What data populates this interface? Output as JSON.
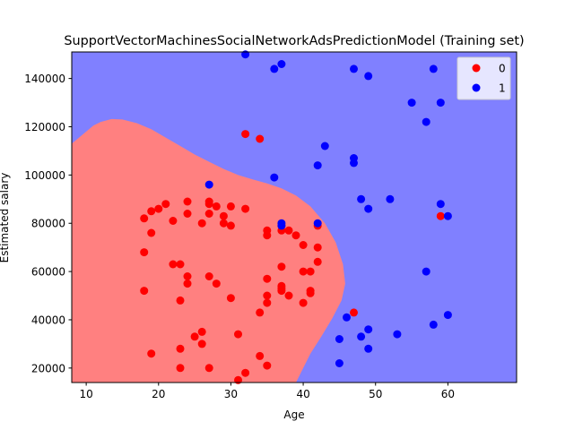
{
  "chart_data": {
    "type": "scatter",
    "title": "SupportVectorMachinesSocialNetworkAdsPredictionModel (Training set)",
    "xlabel": "Age",
    "ylabel": "Estimated salary",
    "xlim": [
      8,
      69.5
    ],
    "ylim": [
      14000,
      151000
    ],
    "xticks": [
      10,
      20,
      30,
      40,
      50,
      60
    ],
    "yticks": [
      20000,
      40000,
      60000,
      80000,
      100000,
      120000,
      140000
    ],
    "ytick_labels": [
      "20000",
      "40000",
      "60000",
      "80000",
      "100000",
      "120000",
      "140000"
    ],
    "grid": false,
    "legend_position": "top-right",
    "region_colors": {
      "0": "#ff8080",
      "1": "#8080ff"
    },
    "decision_boundary": {
      "class_0_region_outline": [
        [
          8,
          113000
        ],
        [
          9,
          115500
        ],
        [
          10,
          118000
        ],
        [
          11,
          120500
        ],
        [
          12,
          122000
        ],
        [
          13.5,
          123200
        ],
        [
          15,
          123000
        ],
        [
          17,
          121500
        ],
        [
          19,
          119000
        ],
        [
          21,
          115500
        ],
        [
          23,
          112000
        ],
        [
          25,
          108500
        ],
        [
          27,
          105500
        ],
        [
          29,
          102500
        ],
        [
          31,
          100000
        ],
        [
          33,
          98200
        ],
        [
          35,
          96500
        ],
        [
          37,
          94500
        ],
        [
          39,
          91500
        ],
        [
          41,
          87000
        ],
        [
          43,
          80000
        ],
        [
          44.5,
          72000
        ],
        [
          45.5,
          63000
        ],
        [
          45.8,
          55000
        ],
        [
          45.3,
          48000
        ],
        [
          44,
          40500
        ],
        [
          42.5,
          33000
        ],
        [
          41,
          26000
        ],
        [
          40,
          20000
        ],
        [
          39,
          14000
        ],
        [
          8,
          14000
        ]
      ]
    },
    "series": [
      {
        "name": "0",
        "color": "#ff0000",
        "points": [
          [
            32,
            117000
          ],
          [
            34,
            115000
          ],
          [
            35,
            75000
          ],
          [
            35,
            77000
          ],
          [
            37,
            77000
          ],
          [
            37,
            79000
          ],
          [
            38,
            77000
          ],
          [
            39,
            75000
          ],
          [
            40,
            71000
          ],
          [
            42,
            79000
          ],
          [
            42,
            70000
          ],
          [
            42,
            64000
          ],
          [
            41,
            60000
          ],
          [
            40,
            60000
          ],
          [
            41,
            52000
          ],
          [
            41,
            51000
          ],
          [
            40,
            47000
          ],
          [
            37,
            62000
          ],
          [
            37,
            54000
          ],
          [
            37,
            53000
          ],
          [
            37,
            52000
          ],
          [
            38,
            50000
          ],
          [
            35,
            57000
          ],
          [
            35,
            50000
          ],
          [
            35,
            47000
          ],
          [
            34,
            43000
          ],
          [
            18,
            82000
          ],
          [
            19,
            85000
          ],
          [
            20,
            86000
          ],
          [
            21,
            88000
          ],
          [
            19,
            76000
          ],
          [
            22,
            81000
          ],
          [
            24,
            89000
          ],
          [
            24,
            84000
          ],
          [
            26,
            80000
          ],
          [
            27,
            89000
          ],
          [
            27,
            88000
          ],
          [
            27,
            84000
          ],
          [
            28,
            87000
          ],
          [
            29,
            83000
          ],
          [
            29,
            80000
          ],
          [
            30,
            87000
          ],
          [
            30,
            79000
          ],
          [
            32,
            86000
          ],
          [
            18,
            68000
          ],
          [
            22,
            63000
          ],
          [
            23,
            63000
          ],
          [
            24,
            58000
          ],
          [
            24,
            55000
          ],
          [
            27,
            58000
          ],
          [
            28,
            55000
          ],
          [
            18,
            52000
          ],
          [
            23,
            48000
          ],
          [
            30,
            49000
          ],
          [
            25,
            33000
          ],
          [
            26,
            35000
          ],
          [
            26,
            30000
          ],
          [
            23,
            28000
          ],
          [
            19,
            26000
          ],
          [
            23,
            20000
          ],
          [
            27,
            20000
          ],
          [
            31,
            34000
          ],
          [
            34,
            25000
          ],
          [
            35,
            21000
          ],
          [
            32,
            18000
          ],
          [
            31,
            15000
          ],
          [
            47,
            43000
          ],
          [
            59,
            83000
          ]
        ]
      },
      {
        "name": "1",
        "color": "#0000ff",
        "points": [
          [
            32,
            150000
          ],
          [
            36,
            144000
          ],
          [
            37,
            146000
          ],
          [
            47,
            144000
          ],
          [
            49,
            141000
          ],
          [
            58,
            144000
          ],
          [
            55,
            130000
          ],
          [
            59,
            130000
          ],
          [
            57,
            122000
          ],
          [
            43,
            112000
          ],
          [
            42,
            104000
          ],
          [
            47,
            107000
          ],
          [
            47,
            105000
          ],
          [
            36,
            99000
          ],
          [
            27,
            96000
          ],
          [
            48,
            90000
          ],
          [
            52,
            90000
          ],
          [
            49,
            86000
          ],
          [
            59,
            88000
          ],
          [
            60,
            83000
          ],
          [
            37,
            80000
          ],
          [
            42,
            80000
          ],
          [
            37,
            79000
          ],
          [
            57,
            60000
          ],
          [
            46,
            41000
          ],
          [
            60,
            42000
          ],
          [
            58,
            38000
          ],
          [
            49,
            36000
          ],
          [
            48,
            33000
          ],
          [
            45,
            32000
          ],
          [
            53,
            34000
          ],
          [
            49,
            28000
          ],
          [
            45,
            22000
          ]
        ]
      }
    ]
  }
}
